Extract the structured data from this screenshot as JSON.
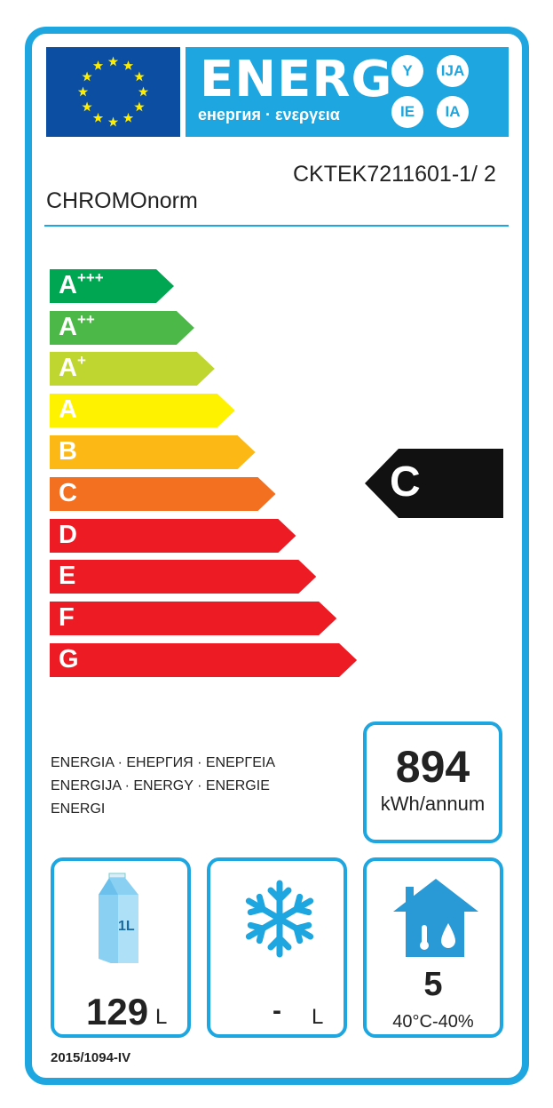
{
  "header": {
    "energy_word": "ENERG",
    "energy_sub": "енергия · ενεργεια",
    "suffixes": [
      "Y",
      "IJA",
      "IE",
      "IA"
    ]
  },
  "supplier": "CHROMOnorm",
  "model": "CKTEK7211601-1/ 2",
  "scale": [
    {
      "letter": "A",
      "sup": "+++",
      "color": "#00a651"
    },
    {
      "letter": "A",
      "sup": "++",
      "color": "#4cb848"
    },
    {
      "letter": "A",
      "sup": "+",
      "color": "#bed62f"
    },
    {
      "letter": "A",
      "sup": "",
      "color": "#fff200"
    },
    {
      "letter": "B",
      "sup": "",
      "color": "#fcb814"
    },
    {
      "letter": "C",
      "sup": "",
      "color": "#f37021"
    },
    {
      "letter": "D",
      "sup": "",
      "color": "#ed1c24"
    },
    {
      "letter": "E",
      "sup": "",
      "color": "#ed1c24"
    },
    {
      "letter": "F",
      "sup": "",
      "color": "#ed1c24"
    },
    {
      "letter": "G",
      "sup": "",
      "color": "#ed1c24"
    }
  ],
  "rating": "C",
  "energy_words": [
    "ENERGIA · ЕНЕРГИЯ · ΕΝΕΡΓΕΙΑ",
    "ENERGIJA · ENERGY · ENERGIE",
    "ENERGI"
  ],
  "consumption": {
    "value": "894",
    "unit": "kWh/annum"
  },
  "fresh_volume": {
    "value": "129",
    "unit": "L",
    "icon_label": "1L"
  },
  "frozen_volume": {
    "value": "-",
    "unit": "L"
  },
  "climate": {
    "class": "5",
    "conditions": "40°C-40%"
  },
  "regulation": "2015/1094-IV",
  "colors": {
    "border": "#1ea6e0",
    "flag": "#0b4ea2"
  }
}
